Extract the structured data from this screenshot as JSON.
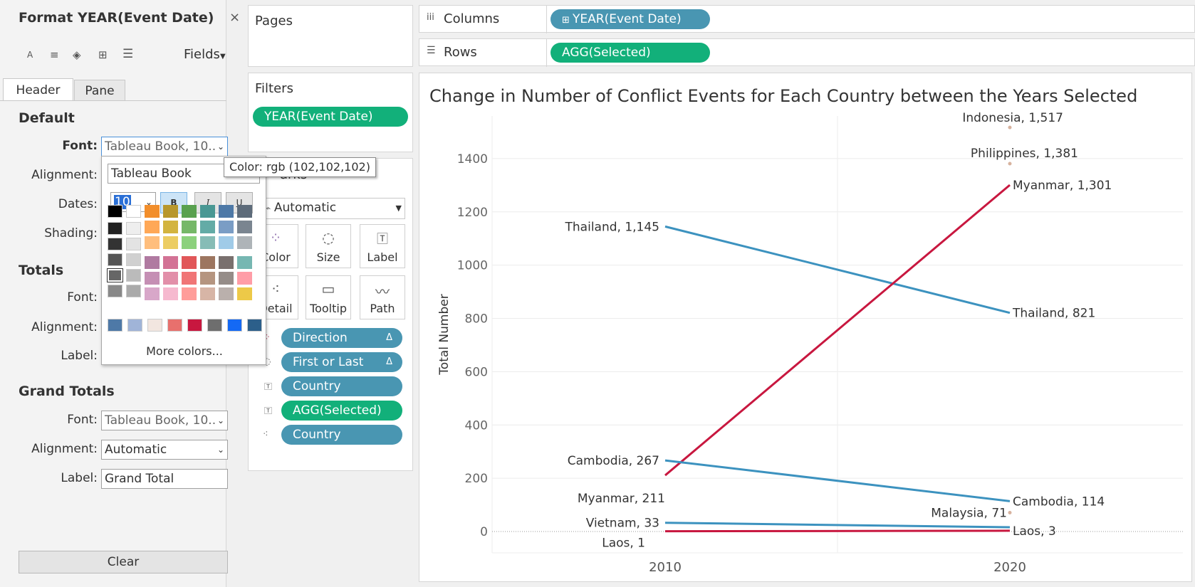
{
  "format_panel": {
    "title": "Format YEAR(Event Date)",
    "close_glyph": "×",
    "fields_label": "Fields",
    "tabs": [
      "Header",
      "Pane"
    ],
    "default_section": "Default",
    "totals_section": "Totals",
    "grand_totals_section": "Grand Totals",
    "labels": {
      "font": "Font:",
      "alignment": "Alignment:",
      "dates": "Dates:",
      "shading": "Shading:",
      "label": "Label:"
    },
    "default_font_value": "Tableau Book, 10..",
    "grand_font_value": "Tableau Book, 10..",
    "grand_alignment_value": "Automatic",
    "grand_label_value": "Grand Total",
    "clear_label": "Clear"
  },
  "font_popup": {
    "font_name": "Tableau Book",
    "font_size": "10",
    "bold": "B",
    "italic": "I",
    "underline": "U",
    "more_colors": "More colors...",
    "tooltip": "Color: rgb (102,102,102)"
  },
  "pages_card": {
    "title": "Pages"
  },
  "filters_card": {
    "title": "Filters",
    "pill": "YEAR(Event Date)"
  },
  "marks_card": {
    "title_fragment": "arks",
    "type_value": "Automatic",
    "buttons": [
      "Color",
      "Size",
      "Label",
      "Detail",
      "Tooltip",
      "Path"
    ],
    "fields": [
      {
        "label": "Direction",
        "delta": "Δ",
        "color": "blue"
      },
      {
        "label": "First or Last",
        "delta": "Δ",
        "color": "blue"
      },
      {
        "label": "Country",
        "delta": "",
        "color": "blue"
      },
      {
        "label": "AGG(Selected)",
        "delta": "",
        "color": "green"
      },
      {
        "label": "Country",
        "delta": "",
        "color": "blue"
      }
    ]
  },
  "shelves": {
    "columns_label": "Columns",
    "columns_pill": "YEAR(Event Date)",
    "rows_label": "Rows",
    "rows_pill": "AGG(Selected)"
  },
  "chart_data": {
    "type": "line",
    "title": "Change in Number of Conflict Events for Each Country between the Years Selected",
    "ylabel": "Total Number",
    "xlabel": "",
    "categories": [
      "2010",
      "2020"
    ],
    "ylim": [
      -80,
      1560
    ],
    "yticks": [
      0,
      200,
      400,
      600,
      800,
      1000,
      1200,
      1400
    ],
    "grid": true,
    "colors": {
      "decrease": "#3c92bf",
      "increase": "#c8173f",
      "single": "#d7b29e"
    },
    "series": [
      {
        "name": "Thailand",
        "values": [
          1145,
          821
        ],
        "direction": "decrease",
        "labels": [
          "Thailand, 1,145",
          "Thailand, 821"
        ]
      },
      {
        "name": "Myanmar",
        "values": [
          211,
          1301
        ],
        "direction": "increase",
        "labels": [
          "Myanmar, 211",
          "Myanmar, 1,301"
        ]
      },
      {
        "name": "Cambodia",
        "values": [
          267,
          114
        ],
        "direction": "decrease",
        "labels": [
          "Cambodia, 267",
          "Cambodia, 114"
        ]
      },
      {
        "name": "Vietnam",
        "values": [
          33,
          16
        ],
        "direction": "decrease",
        "labels": [
          "Vietnam, 33",
          ""
        ]
      },
      {
        "name": "Laos",
        "values": [
          1,
          3
        ],
        "direction": "increase",
        "labels": [
          "Laos, 1",
          "Laos, 3"
        ]
      },
      {
        "name": "Indonesia",
        "values": [
          null,
          1517
        ],
        "direction": "single",
        "labels": [
          "",
          "Indonesia, 1,517"
        ]
      },
      {
        "name": "Philippines",
        "values": [
          null,
          1381
        ],
        "direction": "single",
        "labels": [
          "",
          "Philippines, 1,381"
        ]
      },
      {
        "name": "Malaysia",
        "values": [
          null,
          71
        ],
        "direction": "single",
        "labels": [
          "",
          "Malaysia, 71"
        ]
      }
    ]
  }
}
